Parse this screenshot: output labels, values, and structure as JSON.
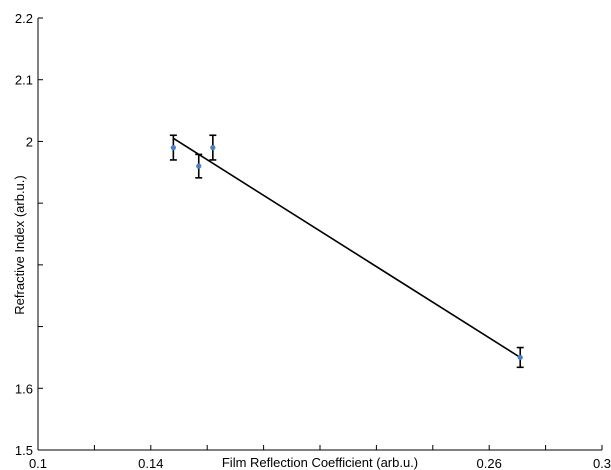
{
  "chart_data": {
    "type": "scatter",
    "title": "",
    "xlabel": "Film Reflection Coefficient (arb.u.)",
    "ylabel": "Refractive Index (arb.u.)",
    "xlim": [
      0.1,
      0.3
    ],
    "ylim": [
      1.5,
      2.2
    ],
    "x_ticks": [
      0.1,
      0.12,
      0.14,
      0.16,
      0.18,
      0.2,
      0.22,
      0.24,
      0.26,
      0.28,
      0.3
    ],
    "x_tick_labels": [
      "0.1",
      "",
      "0.14",
      "",
      "",
      "",
      "",
      "",
      "0.26",
      "",
      "0.3"
    ],
    "y_ticks": [
      1.5,
      1.6,
      1.7,
      1.8,
      1.9,
      2.0,
      2.1,
      2.2
    ],
    "y_tick_labels": [
      "1.5",
      "1.6",
      "",
      "",
      "",
      "2",
      "2.1",
      "2.2"
    ],
    "grid": false,
    "series": [
      {
        "type": "scatter",
        "color": "#4a7fc1",
        "x": [
          0.148,
          0.157,
          0.162,
          0.271
        ],
        "y": [
          1.99,
          1.96,
          1.99,
          1.65
        ],
        "yerr": [
          0.02,
          0.019,
          0.02,
          0.016
        ]
      },
      {
        "type": "line",
        "color": "#000000",
        "x": [
          0.148,
          0.271
        ],
        "y": [
          2.005,
          1.65
        ]
      }
    ]
  }
}
